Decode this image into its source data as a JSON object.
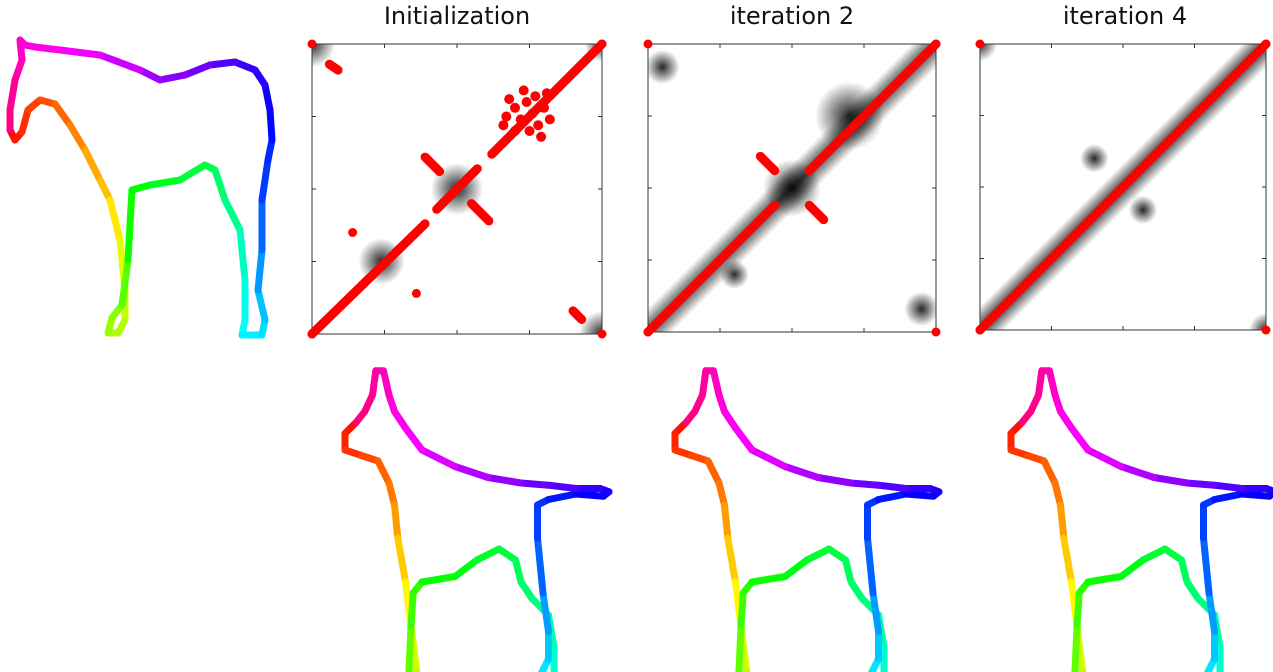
{
  "panels": [
    {
      "title": "Initialization"
    },
    {
      "title": "iteration 2"
    },
    {
      "title": "iteration 4"
    }
  ],
  "colors": {
    "match_points": "#ff0000",
    "heatmap": "#000000",
    "frame": "#333333"
  }
}
